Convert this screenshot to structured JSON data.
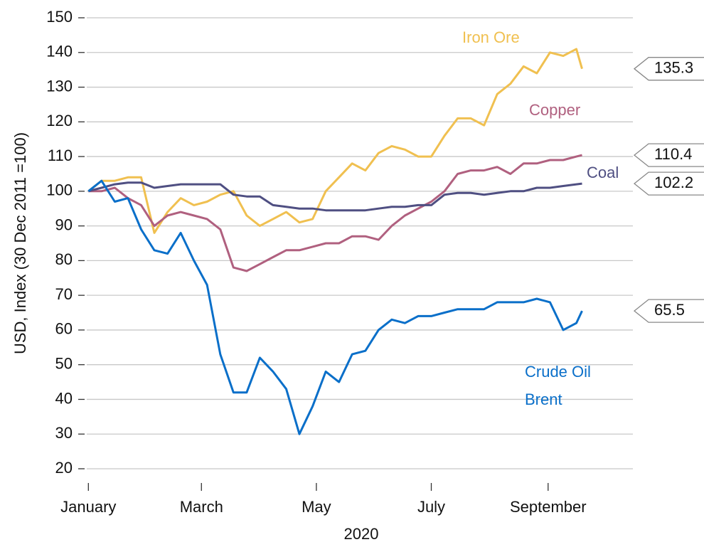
{
  "chart_data": {
    "type": "line",
    "ylabel": "USD, Index (30 Dec 2011 =100)",
    "xlabel": "2020",
    "x": [
      0,
      7,
      14,
      21,
      28,
      35,
      42,
      49,
      56,
      63,
      70,
      77,
      84,
      91,
      98,
      105,
      112,
      119,
      126,
      133,
      140,
      147,
      154,
      161,
      168,
      175,
      182,
      189,
      196,
      203,
      210,
      217,
      224,
      231,
      238,
      245,
      252,
      259,
      262
    ],
    "xlim": [
      -2,
      289
    ],
    "xticks": [
      {
        "value": 0,
        "label": "January"
      },
      {
        "value": 60,
        "label": "March"
      },
      {
        "value": 121,
        "label": "May"
      },
      {
        "value": 182,
        "label": "July"
      },
      {
        "value": 244,
        "label": "September"
      }
    ],
    "ylim": [
      150,
      20
    ],
    "yticks": [
      20,
      30,
      40,
      50,
      60,
      70,
      80,
      90,
      100,
      110,
      120,
      130,
      140,
      150
    ],
    "grid": true,
    "series": [
      {
        "name": "Iron Ore",
        "color": "#f0c050",
        "values": [
          100,
          103,
          103,
          104,
          104,
          88,
          94,
          98,
          96,
          97,
          99,
          100,
          93,
          90,
          92,
          94,
          91,
          92,
          100,
          104,
          108,
          106,
          111,
          113,
          112,
          110,
          110,
          116,
          121,
          121,
          119,
          128,
          131,
          136,
          134,
          140,
          139,
          141,
          135.3
        ]
      },
      {
        "name": "Copper",
        "color": "#b0607f",
        "values": [
          100,
          100,
          101,
          98,
          96,
          90,
          93,
          94,
          93,
          92,
          89,
          78,
          77,
          79,
          81,
          83,
          83,
          84,
          85,
          85,
          87,
          87,
          86,
          90,
          93,
          95,
          97,
          100,
          105,
          106,
          106,
          107,
          105,
          108,
          108,
          109,
          109,
          110,
          110.4
        ]
      },
      {
        "name": "Coal",
        "color": "#4f4f82",
        "values": [
          100,
          101,
          102,
          102.5,
          102.5,
          101,
          101.5,
          102,
          102,
          102,
          102,
          99,
          98.5,
          98.5,
          96,
          95.5,
          95,
          95,
          94.5,
          94.5,
          94.5,
          94.5,
          95,
          95.5,
          95.5,
          96,
          96,
          99,
          99.5,
          99.5,
          99,
          99.5,
          100,
          100,
          101,
          101,
          101.5,
          102,
          102.2
        ]
      },
      {
        "name": "Crude Oil Brent",
        "color": "#0a6fc9",
        "values": [
          100,
          103,
          97,
          98,
          89,
          83,
          82,
          88,
          80,
          73,
          53,
          42,
          42,
          52,
          48,
          43,
          30,
          38,
          48,
          45,
          53,
          54,
          60,
          63,
          62,
          64,
          64,
          65,
          66,
          66,
          66,
          68,
          68,
          68,
          69,
          68,
          60,
          62,
          65.5
        ]
      }
    ]
  }
}
